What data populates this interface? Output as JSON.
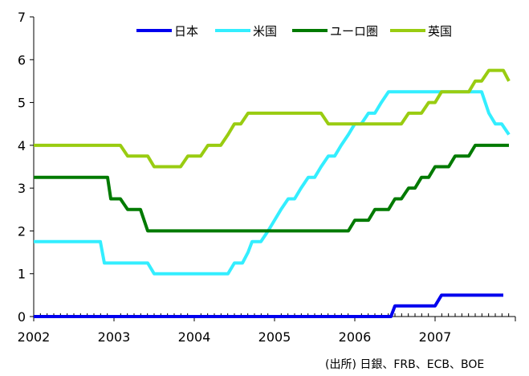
{
  "source_note": "(出所) 日銀、FRB、ECB、BOE",
  "chart_data": {
    "type": "line",
    "ylim": [
      0,
      7
    ],
    "yticks": [
      0,
      1,
      2,
      3,
      4,
      5,
      6,
      7
    ],
    "xlim": [
      2002.0,
      2008.0
    ],
    "xticks": [
      "2002",
      "2003",
      "2004",
      "2005",
      "2006",
      "2007"
    ],
    "grid": false,
    "legend_position": "top",
    "series": [
      {
        "name": "日本",
        "color": "#0000ee",
        "points": [
          [
            2002.0,
            0.0
          ],
          [
            2006.45,
            0.0
          ],
          [
            2006.5,
            0.25
          ],
          [
            2007.0,
            0.25
          ],
          [
            2007.08,
            0.5
          ],
          [
            2007.85,
            0.5
          ]
        ]
      },
      {
        "name": "米国",
        "color": "#33eeff",
        "points": [
          [
            2002.0,
            1.75
          ],
          [
            2002.83,
            1.75
          ],
          [
            2002.88,
            1.25
          ],
          [
            2003.42,
            1.25
          ],
          [
            2003.5,
            1.0
          ],
          [
            2004.42,
            1.0
          ],
          [
            2004.5,
            1.25
          ],
          [
            2004.6,
            1.25
          ],
          [
            2004.67,
            1.5
          ],
          [
            2004.72,
            1.75
          ],
          [
            2004.83,
            1.75
          ],
          [
            2004.92,
            2.0
          ],
          [
            2005.0,
            2.25
          ],
          [
            2005.08,
            2.5
          ],
          [
            2005.17,
            2.75
          ],
          [
            2005.25,
            2.75
          ],
          [
            2005.33,
            3.0
          ],
          [
            2005.42,
            3.25
          ],
          [
            2005.5,
            3.25
          ],
          [
            2005.58,
            3.5
          ],
          [
            2005.67,
            3.75
          ],
          [
            2005.75,
            3.75
          ],
          [
            2005.83,
            4.0
          ],
          [
            2005.92,
            4.25
          ],
          [
            2006.0,
            4.5
          ],
          [
            2006.08,
            4.5
          ],
          [
            2006.17,
            4.75
          ],
          [
            2006.25,
            4.75
          ],
          [
            2006.33,
            5.0
          ],
          [
            2006.42,
            5.25
          ],
          [
            2007.58,
            5.25
          ],
          [
            2007.67,
            4.75
          ],
          [
            2007.75,
            4.5
          ],
          [
            2007.83,
            4.5
          ],
          [
            2007.92,
            4.25
          ]
        ]
      },
      {
        "name": "ユーロ圏",
        "color": "#007a00",
        "points": [
          [
            2002.0,
            3.25
          ],
          [
            2002.92,
            3.25
          ],
          [
            2002.96,
            2.75
          ],
          [
            2003.08,
            2.75
          ],
          [
            2003.17,
            2.5
          ],
          [
            2003.33,
            2.5
          ],
          [
            2003.42,
            2.0
          ],
          [
            2005.92,
            2.0
          ],
          [
            2006.0,
            2.25
          ],
          [
            2006.17,
            2.25
          ],
          [
            2006.25,
            2.5
          ],
          [
            2006.42,
            2.5
          ],
          [
            2006.5,
            2.75
          ],
          [
            2006.58,
            2.75
          ],
          [
            2006.67,
            3.0
          ],
          [
            2006.75,
            3.0
          ],
          [
            2006.83,
            3.25
          ],
          [
            2006.92,
            3.25
          ],
          [
            2007.0,
            3.5
          ],
          [
            2007.17,
            3.5
          ],
          [
            2007.25,
            3.75
          ],
          [
            2007.42,
            3.75
          ],
          [
            2007.5,
            4.0
          ],
          [
            2007.92,
            4.0
          ]
        ]
      },
      {
        "name": "英国",
        "color": "#99cc11",
        "points": [
          [
            2002.0,
            4.0
          ],
          [
            2003.08,
            4.0
          ],
          [
            2003.17,
            3.75
          ],
          [
            2003.42,
            3.75
          ],
          [
            2003.5,
            3.5
          ],
          [
            2003.83,
            3.5
          ],
          [
            2003.92,
            3.75
          ],
          [
            2004.08,
            3.75
          ],
          [
            2004.17,
            4.0
          ],
          [
            2004.33,
            4.0
          ],
          [
            2004.42,
            4.25
          ],
          [
            2004.5,
            4.5
          ],
          [
            2004.58,
            4.5
          ],
          [
            2004.67,
            4.75
          ],
          [
            2005.58,
            4.75
          ],
          [
            2005.67,
            4.5
          ],
          [
            2006.58,
            4.5
          ],
          [
            2006.67,
            4.75
          ],
          [
            2006.83,
            4.75
          ],
          [
            2006.92,
            5.0
          ],
          [
            2007.0,
            5.0
          ],
          [
            2007.08,
            5.25
          ],
          [
            2007.42,
            5.25
          ],
          [
            2007.5,
            5.5
          ],
          [
            2007.58,
            5.5
          ],
          [
            2007.67,
            5.75
          ],
          [
            2007.85,
            5.75
          ],
          [
            2007.92,
            5.5
          ]
        ]
      }
    ]
  }
}
